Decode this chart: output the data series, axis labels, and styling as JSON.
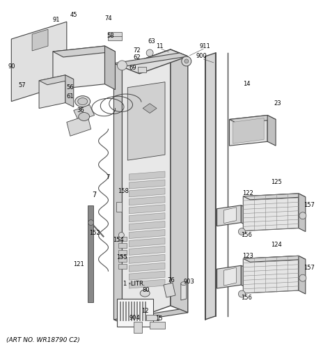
{
  "title": "(ART NO. WR18790 C2)",
  "bg_color": "#ffffff",
  "fig_width": 4.74,
  "fig_height": 5.04,
  "dpi": 100,
  "line_color": "#444444",
  "fill_light": "#f0f0f0",
  "fill_mid": "#d8d8d8",
  "fill_dark": "#b8b8b8",
  "label_fs": 6.0,
  "caption_fs": 6.5
}
